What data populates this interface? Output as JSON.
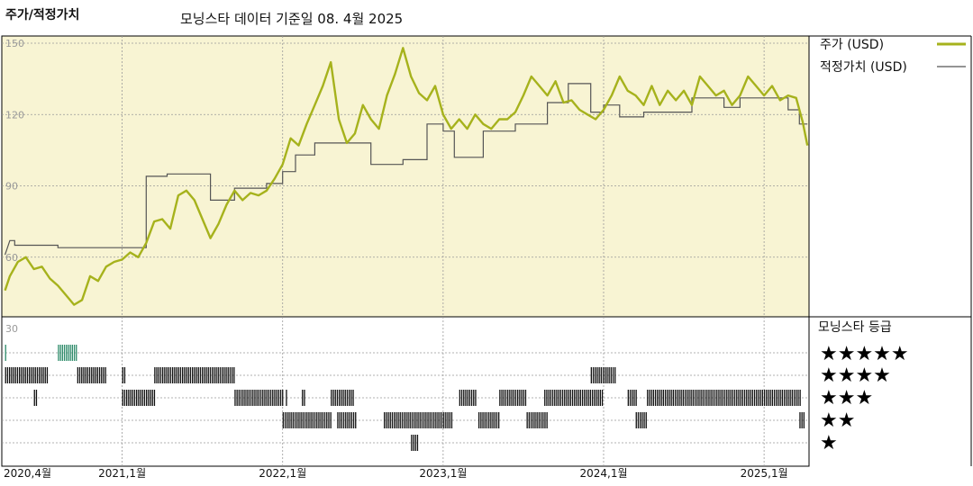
{
  "header": {
    "left_title": "주가/적정가치",
    "main_title": "모닝스타 데이터 기준일 08. 4월 2025"
  },
  "colors": {
    "price_line": "#a6b21c",
    "fair_value_line": "#555555",
    "plot_bg": "#f8f4d3",
    "rating_bar": "#111111",
    "rating_bar_top": "#2e8b6a"
  },
  "legend": {
    "price": "주가 (USD)",
    "fair_value": "적정가치 (USD)"
  },
  "rating_panel": {
    "title": "모닝스타 등급",
    "levels": [
      "★★★★★",
      "★★★★",
      "★★★",
      "★★",
      "★"
    ]
  },
  "chart_data": {
    "type": "line",
    "title": "",
    "ylim": [
      30,
      150
    ],
    "y_ticks": [
      "150",
      "120",
      "90",
      "60",
      "30"
    ],
    "x_ticks": [
      "2020,4월",
      "2021,1월",
      "2022,1월",
      "2023,1월",
      "2024,1월",
      "2025,1월"
    ],
    "series": [
      {
        "name": "주가 (USD)",
        "points": [
          [
            2020.27,
            46
          ],
          [
            2020.3,
            52
          ],
          [
            2020.35,
            58
          ],
          [
            2020.4,
            60
          ],
          [
            2020.45,
            55
          ],
          [
            2020.5,
            56
          ],
          [
            2020.55,
            51
          ],
          [
            2020.6,
            48
          ],
          [
            2020.65,
            44
          ],
          [
            2020.7,
            40
          ],
          [
            2020.75,
            42
          ],
          [
            2020.8,
            52
          ],
          [
            2020.85,
            50
          ],
          [
            2020.9,
            56
          ],
          [
            2020.95,
            58
          ],
          [
            2021.0,
            59
          ],
          [
            2021.05,
            62
          ],
          [
            2021.1,
            60
          ],
          [
            2021.15,
            66
          ],
          [
            2021.2,
            75
          ],
          [
            2021.25,
            76
          ],
          [
            2021.3,
            72
          ],
          [
            2021.35,
            86
          ],
          [
            2021.4,
            88
          ],
          [
            2021.45,
            84
          ],
          [
            2021.5,
            76
          ],
          [
            2021.55,
            68
          ],
          [
            2021.6,
            74
          ],
          [
            2021.65,
            82
          ],
          [
            2021.7,
            88
          ],
          [
            2021.75,
            84
          ],
          [
            2021.8,
            87
          ],
          [
            2021.85,
            86
          ],
          [
            2021.9,
            88
          ],
          [
            2021.95,
            93
          ],
          [
            2022.0,
            99
          ],
          [
            2022.05,
            110
          ],
          [
            2022.1,
            107
          ],
          [
            2022.15,
            116
          ],
          [
            2022.2,
            124
          ],
          [
            2022.25,
            132
          ],
          [
            2022.3,
            142
          ],
          [
            2022.35,
            118
          ],
          [
            2022.4,
            108
          ],
          [
            2022.45,
            112
          ],
          [
            2022.5,
            124
          ],
          [
            2022.55,
            118
          ],
          [
            2022.6,
            114
          ],
          [
            2022.65,
            128
          ],
          [
            2022.7,
            137
          ],
          [
            2022.75,
            148
          ],
          [
            2022.8,
            136
          ],
          [
            2022.85,
            129
          ],
          [
            2022.9,
            126
          ],
          [
            2022.95,
            132
          ],
          [
            2023.0,
            120
          ],
          [
            2023.05,
            114
          ],
          [
            2023.1,
            118
          ],
          [
            2023.15,
            114
          ],
          [
            2023.2,
            120
          ],
          [
            2023.25,
            116
          ],
          [
            2023.3,
            114
          ],
          [
            2023.35,
            118
          ],
          [
            2023.4,
            118
          ],
          [
            2023.45,
            121
          ],
          [
            2023.5,
            128
          ],
          [
            2023.55,
            136
          ],
          [
            2023.6,
            132
          ],
          [
            2023.65,
            128
          ],
          [
            2023.7,
            134
          ],
          [
            2023.75,
            125
          ],
          [
            2023.8,
            126
          ],
          [
            2023.85,
            122
          ],
          [
            2023.9,
            120
          ],
          [
            2023.95,
            118
          ],
          [
            2024.0,
            122
          ],
          [
            2024.05,
            128
          ],
          [
            2024.1,
            136
          ],
          [
            2024.15,
            130
          ],
          [
            2024.2,
            128
          ],
          [
            2024.25,
            124
          ],
          [
            2024.3,
            132
          ],
          [
            2024.35,
            124
          ],
          [
            2024.4,
            130
          ],
          [
            2024.45,
            126
          ],
          [
            2024.5,
            130
          ],
          [
            2024.55,
            124
          ],
          [
            2024.6,
            136
          ],
          [
            2024.65,
            132
          ],
          [
            2024.7,
            128
          ],
          [
            2024.75,
            130
          ],
          [
            2024.8,
            124
          ],
          [
            2024.85,
            128
          ],
          [
            2024.9,
            136
          ],
          [
            2024.95,
            132
          ],
          [
            2025.0,
            128
          ],
          [
            2025.05,
            132
          ],
          [
            2025.1,
            126
          ],
          [
            2025.15,
            128
          ],
          [
            2025.2,
            127
          ],
          [
            2025.24,
            117
          ],
          [
            2025.27,
            107
          ]
        ]
      },
      {
        "name": "적정가치 (USD)",
        "points": [
          [
            2020.27,
            61
          ],
          [
            2020.3,
            67
          ],
          [
            2020.33,
            67
          ],
          [
            2020.33,
            65
          ],
          [
            2020.6,
            65
          ],
          [
            2020.6,
            64
          ],
          [
            2021.15,
            64
          ],
          [
            2021.15,
            94
          ],
          [
            2021.28,
            94
          ],
          [
            2021.28,
            95
          ],
          [
            2021.55,
            95
          ],
          [
            2021.55,
            84
          ],
          [
            2021.7,
            84
          ],
          [
            2021.7,
            89
          ],
          [
            2021.9,
            89
          ],
          [
            2021.9,
            91
          ],
          [
            2022.0,
            91
          ],
          [
            2022.0,
            96
          ],
          [
            2022.08,
            96
          ],
          [
            2022.08,
            103
          ],
          [
            2022.2,
            103
          ],
          [
            2022.2,
            108
          ],
          [
            2022.55,
            108
          ],
          [
            2022.55,
            99
          ],
          [
            2022.75,
            99
          ],
          [
            2022.75,
            101
          ],
          [
            2022.9,
            101
          ],
          [
            2022.9,
            116
          ],
          [
            2023.0,
            116
          ],
          [
            2023.0,
            113
          ],
          [
            2023.07,
            113
          ],
          [
            2023.07,
            102
          ],
          [
            2023.25,
            102
          ],
          [
            2023.25,
            113
          ],
          [
            2023.45,
            113
          ],
          [
            2023.45,
            116
          ],
          [
            2023.65,
            116
          ],
          [
            2023.65,
            125
          ],
          [
            2023.78,
            125
          ],
          [
            2023.78,
            133
          ],
          [
            2023.92,
            133
          ],
          [
            2023.92,
            121
          ],
          [
            2024.0,
            121
          ],
          [
            2024.0,
            124
          ],
          [
            2024.1,
            124
          ],
          [
            2024.1,
            119
          ],
          [
            2024.25,
            119
          ],
          [
            2024.25,
            121
          ],
          [
            2024.55,
            121
          ],
          [
            2024.55,
            127
          ],
          [
            2024.75,
            127
          ],
          [
            2024.75,
            123
          ],
          [
            2024.85,
            123
          ],
          [
            2024.85,
            127
          ],
          [
            2025.15,
            127
          ],
          [
            2025.15,
            122
          ],
          [
            2025.22,
            122
          ],
          [
            2025.22,
            116
          ],
          [
            2025.27,
            116
          ]
        ]
      }
    ],
    "ratings": [
      {
        "level": 5,
        "segments": [
          [
            2020.27,
            2020.28
          ],
          [
            2020.6,
            2020.72
          ]
        ]
      },
      {
        "level": 4,
        "segments": [
          [
            2020.27,
            2020.54
          ],
          [
            2020.72,
            2020.9
          ],
          [
            2021.0,
            2021.02
          ],
          [
            2021.2,
            2021.7
          ],
          [
            2023.92,
            2024.07
          ]
        ]
      },
      {
        "level": 3,
        "segments": [
          [
            2020.45,
            2020.47
          ],
          [
            2021.0,
            2021.2
          ],
          [
            2021.7,
            2022.0
          ],
          [
            2022.02,
            2022.03
          ],
          [
            2022.12,
            2022.14
          ],
          [
            2022.3,
            2022.44
          ],
          [
            2023.1,
            2023.2
          ],
          [
            2023.35,
            2023.52
          ],
          [
            2023.63,
            2024.0
          ],
          [
            2024.15,
            2024.2
          ],
          [
            2024.27,
            2025.23
          ]
        ]
      },
      {
        "level": 2,
        "segments": [
          [
            2022.0,
            2022.3
          ],
          [
            2022.34,
            2022.46
          ],
          [
            2022.63,
            2023.05
          ],
          [
            2023.22,
            2023.35
          ],
          [
            2023.52,
            2023.65
          ],
          [
            2024.2,
            2024.27
          ],
          [
            2025.22,
            2025.25
          ]
        ]
      },
      {
        "level": 1,
        "segments": [
          [
            2022.8,
            2022.84
          ]
        ]
      }
    ]
  }
}
